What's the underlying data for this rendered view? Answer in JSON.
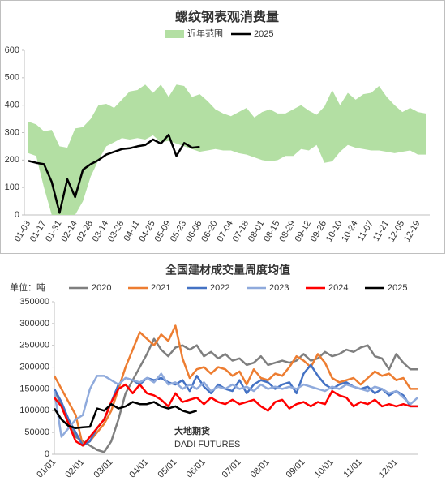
{
  "chart_data": [
    {
      "type": "line",
      "title": "螺纹钢表观消费量",
      "categories": [
        "01-03",
        null,
        "01-17",
        null,
        "01-31",
        null,
        "02-14",
        null,
        "02-28",
        null,
        "03-14",
        null,
        "03-28",
        null,
        "04-11",
        null,
        "04-25",
        null,
        "05-09",
        null,
        "05-23",
        null,
        "06-06",
        null,
        "06-20",
        null,
        "07-04",
        null,
        "07-18",
        null,
        "08-01",
        null,
        "08-15",
        null,
        "08-29",
        null,
        "09-12",
        null,
        "09-26",
        null,
        "10-10",
        null,
        "10-24",
        null,
        "11-07",
        null,
        "11-21",
        null,
        "12-05",
        null,
        "12-19",
        null
      ],
      "series": [
        {
          "name": "近年范围",
          "color": "#b3dfa3",
          "high": [
            340,
            330,
            305,
            310,
            250,
            245,
            315,
            320,
            350,
            400,
            405,
            390,
            420,
            450,
            455,
            475,
            445,
            475,
            430,
            475,
            470,
            430,
            440,
            415,
            385,
            370,
            360,
            375,
            390,
            355,
            375,
            385,
            370,
            370,
            385,
            400,
            380,
            365,
            395,
            455,
            400,
            445,
            420,
            440,
            445,
            470,
            430,
            400,
            375,
            390,
            375,
            370
          ],
          "low": [
            225,
            215,
            100,
            0,
            0,
            0,
            0,
            50,
            140,
            200,
            250,
            265,
            280,
            275,
            280,
            275,
            290,
            265,
            270,
            260,
            250,
            240,
            230,
            235,
            240,
            235,
            235,
            225,
            220,
            210,
            200,
            195,
            200,
            215,
            215,
            240,
            235,
            255,
            190,
            195,
            230,
            255,
            245,
            240,
            235,
            235,
            230,
            225,
            230,
            235,
            220,
            220
          ]
        },
        {
          "name": "2025",
          "color": "#000000",
          "values": [
            197,
            190,
            185,
            120,
            8,
            130,
            65,
            165,
            185,
            200,
            220,
            230,
            240,
            243,
            250,
            255,
            275,
            260,
            292,
            215,
            262,
            245,
            248,
            null,
            null,
            null,
            null,
            null,
            null,
            null,
            null,
            null,
            null,
            null,
            null,
            null,
            null,
            null,
            null,
            null,
            null,
            null,
            null,
            null,
            null,
            null,
            null,
            null,
            null,
            null,
            null,
            null
          ]
        }
      ],
      "ylim": [
        0,
        600
      ],
      "yticks": [
        0,
        100,
        200,
        300,
        400,
        500,
        600
      ],
      "grid": false
    },
    {
      "type": "line",
      "title": "全国建材成交量周度均值",
      "unit_label": "单位：吨",
      "watermark": [
        "大地期货",
        "DADI FUTURES"
      ],
      "categories": [
        "01/01",
        null,
        null,
        null,
        "02/01",
        null,
        null,
        null,
        "03/01",
        null,
        null,
        null,
        null,
        "04/01",
        null,
        null,
        null,
        "05/01",
        null,
        null,
        null,
        "06/01",
        null,
        null,
        null,
        null,
        "07/01",
        null,
        null,
        null,
        "08/01",
        null,
        null,
        null,
        null,
        "09/01",
        null,
        null,
        null,
        "10/01",
        null,
        null,
        null,
        "11/01",
        null,
        null,
        null,
        null,
        "12/01",
        null,
        null,
        null
      ],
      "series": [
        {
          "name": "2020",
          "color": "#7f7f7f",
          "values": [
            150000,
            110000,
            70000,
            40000,
            30000,
            20000,
            10000,
            5000,
            30000,
            80000,
            140000,
            170000,
            200000,
            230000,
            265000,
            240000,
            225000,
            245000,
            250000,
            240000,
            250000,
            225000,
            235000,
            220000,
            230000,
            215000,
            220000,
            205000,
            210000,
            225000,
            205000,
            210000,
            215000,
            210000,
            215000,
            230000,
            215000,
            220000,
            235000,
            225000,
            230000,
            240000,
            235000,
            245000,
            250000,
            225000,
            220000,
            195000,
            230000,
            210000,
            195000,
            195000
          ]
        },
        {
          "name": "2021",
          "color": "#ed7d31",
          "values": [
            180000,
            150000,
            120000,
            90000,
            20000,
            30000,
            50000,
            70000,
            100000,
            150000,
            200000,
            240000,
            280000,
            265000,
            250000,
            275000,
            260000,
            295000,
            220000,
            175000,
            195000,
            200000,
            185000,
            200000,
            195000,
            180000,
            190000,
            160000,
            195000,
            175000,
            170000,
            185000,
            180000,
            200000,
            225000,
            215000,
            200000,
            230000,
            210000,
            175000,
            165000,
            170000,
            175000,
            160000,
            175000,
            190000,
            180000,
            185000,
            170000,
            175000,
            150000,
            150000
          ]
        },
        {
          "name": "2022",
          "color": "#4472c4",
          "values": [
            150000,
            120000,
            80000,
            50000,
            20000,
            30000,
            60000,
            80000,
            120000,
            160000,
            175000,
            170000,
            160000,
            175000,
            170000,
            175000,
            165000,
            160000,
            170000,
            145000,
            180000,
            155000,
            140000,
            160000,
            150000,
            145000,
            170000,
            140000,
            160000,
            170000,
            165000,
            150000,
            160000,
            165000,
            140000,
            185000,
            205000,
            180000,
            160000,
            150000,
            160000,
            165000,
            155000,
            150000,
            155000,
            140000,
            150000,
            135000,
            145000,
            135000,
            110000,
            110000
          ]
        },
        {
          "name": "2023",
          "color": "#8faadc",
          "values": [
            145000,
            40000,
            60000,
            80000,
            90000,
            150000,
            180000,
            180000,
            170000,
            160000,
            175000,
            170000,
            165000,
            175000,
            165000,
            185000,
            160000,
            165000,
            150000,
            160000,
            150000,
            165000,
            145000,
            155000,
            150000,
            160000,
            150000,
            155000,
            145000,
            160000,
            150000,
            155000,
            150000,
            155000,
            150000,
            160000,
            155000,
            150000,
            145000,
            155000,
            150000,
            160000,
            155000,
            150000,
            145000,
            155000,
            150000,
            140000,
            145000,
            130000,
            115000,
            130000
          ]
        },
        {
          "name": "2024",
          "color": "#ff0000",
          "values": [
            130000,
            110000,
            70000,
            30000,
            20000,
            40000,
            60000,
            80000,
            120000,
            150000,
            160000,
            140000,
            160000,
            140000,
            135000,
            125000,
            110000,
            140000,
            120000,
            125000,
            130000,
            115000,
            130000,
            120000,
            115000,
            125000,
            115000,
            120000,
            125000,
            110000,
            100000,
            120000,
            125000,
            105000,
            115000,
            120000,
            110000,
            120000,
            115000,
            145000,
            135000,
            130000,
            110000,
            120000,
            115000,
            125000,
            110000,
            115000,
            110000,
            115000,
            110000,
            110000
          ]
        },
        {
          "name": "2025",
          "color": "#000000",
          "values": [
            105000,
            80000,
            65000,
            60000,
            62000,
            63000,
            105000,
            100000,
            115000,
            105000,
            110000,
            120000,
            115000,
            115000,
            120000,
            110000,
            105000,
            110000,
            100000,
            95000,
            100000,
            null,
            null,
            null,
            null,
            null,
            null,
            null,
            null,
            null,
            null,
            null,
            null,
            null,
            null,
            null,
            null,
            null,
            null,
            null,
            null,
            null,
            null,
            null,
            null,
            null,
            null,
            null,
            null,
            null,
            null,
            null
          ]
        }
      ],
      "ylim": [
        0,
        350000
      ],
      "yticks": [
        0,
        50000,
        100000,
        150000,
        200000,
        250000,
        300000,
        350000
      ],
      "grid": false
    }
  ]
}
